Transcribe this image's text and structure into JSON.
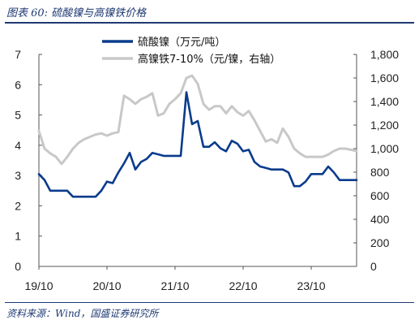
{
  "figure": {
    "title": "图表 60: 硫酸镍与高镍铁价格",
    "source": "资料来源：Wind，国盛证券研究所"
  },
  "chart_data": {
    "type": "line",
    "x_axis": {
      "ticks": [
        "19/10",
        "20/10",
        "21/10",
        "22/10",
        "23/10"
      ],
      "range": [
        "2019-10",
        "2024-06"
      ]
    },
    "y_left": {
      "min": 0,
      "max": 7,
      "ticks": [
        "0",
        "1",
        "2",
        "3",
        "4",
        "5",
        "6",
        "7"
      ]
    },
    "y_right": {
      "min": 0,
      "max": 1800,
      "ticks": [
        "0",
        "200",
        "400",
        "600",
        "800",
        "1,000",
        "1,200",
        "1,400",
        "1,600",
        "1,800"
      ]
    },
    "legend_position": "top-center",
    "grid": false,
    "series": [
      {
        "name": "硫酸镍（万元/吨）",
        "axis": "left",
        "color": "#0a3b8c",
        "x": [
          "2019-10",
          "2019-11",
          "2019-12",
          "2020-01",
          "2020-02",
          "2020-03",
          "2020-04",
          "2020-05",
          "2020-06",
          "2020-07",
          "2020-08",
          "2020-09",
          "2020-10",
          "2020-11",
          "2020-12",
          "2021-01",
          "2021-02",
          "2021-03",
          "2021-04",
          "2021-05",
          "2021-06",
          "2021-07",
          "2021-08",
          "2021-09",
          "2021-10",
          "2021-11",
          "2021-12",
          "2022-01",
          "2022-02",
          "2022-03",
          "2022-04",
          "2022-05",
          "2022-06",
          "2022-07",
          "2022-08",
          "2022-09",
          "2022-10",
          "2022-11",
          "2022-12",
          "2023-01",
          "2023-02",
          "2023-03",
          "2023-04",
          "2023-05",
          "2023-06",
          "2023-07",
          "2023-08",
          "2023-09",
          "2023-10",
          "2023-11",
          "2023-12",
          "2024-01",
          "2024-02",
          "2024-03",
          "2024-04",
          "2024-05",
          "2024-06"
        ],
        "y": [
          3.05,
          2.85,
          2.5,
          2.5,
          2.5,
          2.5,
          2.3,
          2.3,
          2.3,
          2.3,
          2.3,
          2.5,
          2.8,
          2.75,
          3.1,
          3.4,
          3.75,
          3.2,
          3.45,
          3.55,
          3.75,
          3.7,
          3.65,
          3.65,
          3.65,
          3.65,
          5.75,
          4.7,
          4.8,
          3.95,
          3.95,
          4.1,
          3.9,
          3.8,
          4.15,
          4.05,
          3.8,
          3.85,
          3.45,
          3.3,
          3.25,
          3.2,
          3.2,
          3.2,
          3.1,
          2.65,
          2.65,
          2.8,
          3.05,
          3.05,
          3.05,
          3.3,
          3.1,
          2.85,
          2.85,
          2.85,
          2.85
        ]
      },
      {
        "name": "高镍铁7-10%（元/镍，右轴）",
        "axis": "right",
        "color": "#c8c8c8",
        "x": [
          "2019-10",
          "2019-11",
          "2019-12",
          "2020-01",
          "2020-02",
          "2020-03",
          "2020-04",
          "2020-05",
          "2020-06",
          "2020-07",
          "2020-08",
          "2020-09",
          "2020-10",
          "2020-11",
          "2020-12",
          "2021-01",
          "2021-02",
          "2021-03",
          "2021-04",
          "2021-05",
          "2021-06",
          "2021-07",
          "2021-08",
          "2021-09",
          "2021-10",
          "2021-11",
          "2021-12",
          "2022-01",
          "2022-02",
          "2022-03",
          "2022-04",
          "2022-05",
          "2022-06",
          "2022-07",
          "2022-08",
          "2022-09",
          "2022-10",
          "2022-11",
          "2022-12",
          "2023-01",
          "2023-02",
          "2023-03",
          "2023-04",
          "2023-05",
          "2023-06",
          "2023-07",
          "2023-08",
          "2023-09",
          "2023-10",
          "2023-11",
          "2023-12",
          "2024-01",
          "2024-02",
          "2024-03",
          "2024-04",
          "2024-05",
          "2024-06"
        ],
        "y": [
          1150,
          1000,
          960,
          930,
          870,
          930,
          1000,
          1050,
          1080,
          1100,
          1120,
          1130,
          1110,
          1130,
          1140,
          1450,
          1420,
          1380,
          1420,
          1440,
          1470,
          1280,
          1300,
          1380,
          1420,
          1470,
          1600,
          1620,
          1550,
          1380,
          1330,
          1360,
          1360,
          1300,
          1360,
          1310,
          1280,
          1320,
          1240,
          1150,
          1060,
          1080,
          1050,
          1170,
          1100,
          1000,
          960,
          930,
          930,
          930,
          930,
          950,
          980,
          1000,
          1000,
          990,
          980
        ]
      }
    ]
  }
}
